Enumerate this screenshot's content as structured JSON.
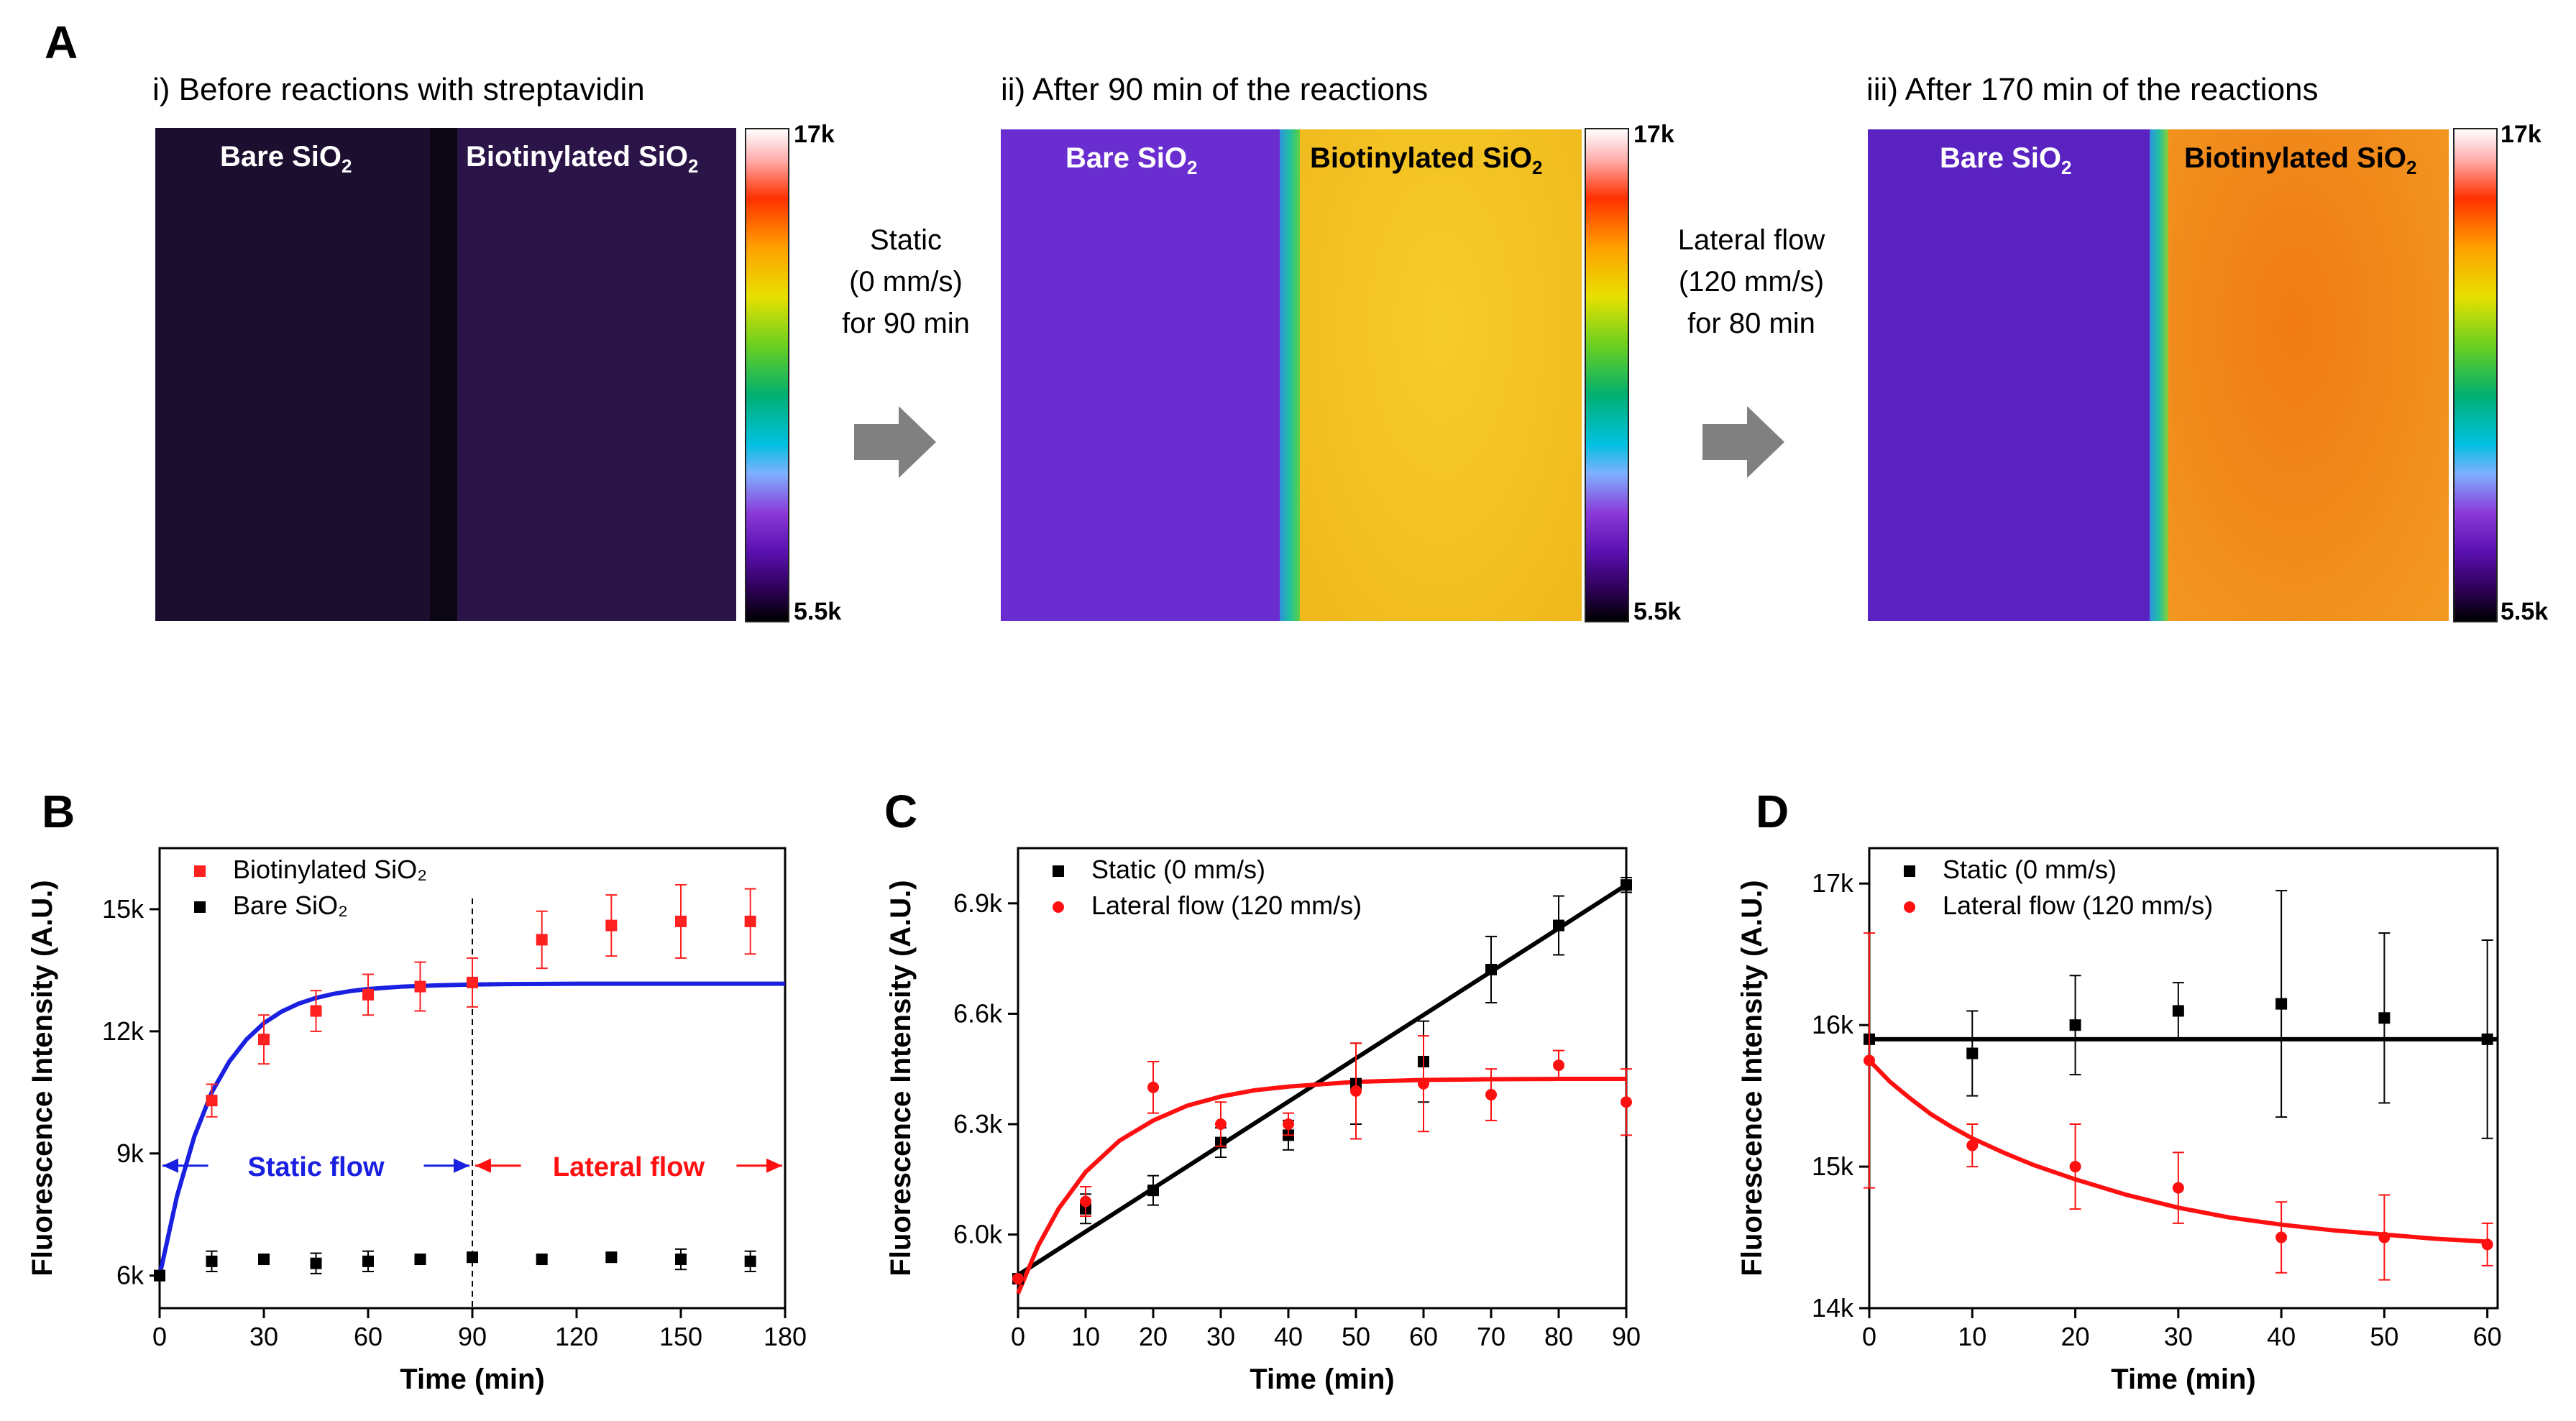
{
  "panel_a": {
    "letter": "A",
    "images": [
      {
        "title": "i) Before reactions with streptavidin",
        "left_label": "Bare SiO",
        "right_label": "Biotinylated SiO",
        "sub": "2",
        "cbar_max": "17k",
        "cbar_min": "5.5k"
      },
      {
        "title": "ii) After 90 min of the reactions",
        "left_label": "Bare SiO",
        "right_label": "Biotinylated SiO",
        "sub": "2",
        "cbar_max": "17k",
        "cbar_min": "5.5k"
      },
      {
        "title": "iii) After 170 min of the reactions",
        "left_label": "Bare SiO",
        "right_label": "Biotinylated SiO",
        "sub": "2",
        "cbar_max": "17k",
        "cbar_min": "5.5k"
      }
    ],
    "transitions": [
      {
        "line1": "Static",
        "line2": "(0 mm/s)",
        "line3": "for 90 min"
      },
      {
        "line1": "Lateral flow",
        "line2": "(120 mm/s)",
        "line3": "for 80 min"
      }
    ],
    "colors": {
      "bare_before": "#1c0e2e",
      "bio_before": "#2a1448",
      "bare_after": "#6a2ed0",
      "bio_ii": "#f2c21c",
      "bio_iii": "#f08a18",
      "edge": "#20c0a0"
    }
  },
  "chart_data": [
    {
      "panel": "B",
      "type": "scatter",
      "xlabel": "Time (min)",
      "ylabel": "Fluorescence Intensity (A.U.)",
      "xlim": [
        0,
        180
      ],
      "ylim": [
        5200,
        16500
      ],
      "xticks": [
        0,
        30,
        60,
        90,
        120,
        150,
        180
      ],
      "xtick_labels": [
        "0",
        "30",
        "60",
        "90",
        "120",
        "150",
        "180"
      ],
      "yticks": [
        6000,
        9000,
        12000,
        15000
      ],
      "ytick_labels": [
        "6k",
        "9k",
        "12k",
        "15k"
      ],
      "series": [
        {
          "name": "Biotinylated SiO₂",
          "color": "#ff2020",
          "marker": "square",
          "x": [
            0,
            15,
            30,
            45,
            60,
            75,
            90,
            110,
            130,
            150,
            170
          ],
          "y": [
            6000,
            10300,
            11800,
            12500,
            12900,
            13100,
            13200,
            14250,
            14600,
            14700,
            14700
          ],
          "err": [
            0,
            400,
            600,
            500,
            500,
            600,
            600,
            700,
            750,
            900,
            800
          ]
        },
        {
          "name": "Bare SiO₂",
          "color": "#000000",
          "marker": "square",
          "x": [
            0,
            15,
            30,
            45,
            60,
            75,
            90,
            110,
            130,
            150,
            170
          ],
          "y": [
            6000,
            6350,
            6400,
            6300,
            6350,
            6400,
            6450,
            6400,
            6450,
            6400,
            6350
          ],
          "err": [
            0,
            250,
            100,
            250,
            250,
            100,
            100,
            100,
            100,
            250,
            250
          ]
        }
      ],
      "fit": {
        "color": "#1a20e0",
        "x": [
          0,
          5,
          10,
          15,
          20,
          25,
          30,
          35,
          40,
          45,
          50,
          55,
          60,
          70,
          80,
          90,
          100,
          120,
          140,
          160,
          180
        ],
        "y": [
          6000,
          7950,
          9420,
          10500,
          11250,
          11800,
          12200,
          12480,
          12680,
          12820,
          12920,
          12990,
          13040,
          13100,
          13130,
          13150,
          13160,
          13170,
          13170,
          13170,
          13170
        ]
      },
      "divider_x": 90,
      "annotations": [
        {
          "text": "Static flow",
          "color": "#1a20e0",
          "from": 0,
          "to": 90,
          "y": 8700
        },
        {
          "text": "Lateral flow",
          "color": "#ff1010",
          "from": 90,
          "to": 180,
          "y": 8700
        }
      ]
    },
    {
      "panel": "C",
      "type": "scatter",
      "xlabel": "Time (min)",
      "ylabel": "Fluorescence Intensity (A.U.)",
      "xlim": [
        0,
        90
      ],
      "ylim": [
        5800,
        7050
      ],
      "xticks": [
        0,
        10,
        20,
        30,
        40,
        50,
        60,
        70,
        80,
        90
      ],
      "xtick_labels": [
        "0",
        "10",
        "20",
        "30",
        "40",
        "50",
        "60",
        "70",
        "80",
        "90"
      ],
      "yticks": [
        6000,
        6300,
        6600,
        6900
      ],
      "ytick_labels": [
        "6.0k",
        "6.3k",
        "6.6k",
        "6.9k"
      ],
      "series": [
        {
          "name": "Static (0 mm/s)",
          "color": "#000000",
          "marker": "square",
          "x": [
            0,
            10,
            20,
            30,
            40,
            50,
            60,
            70,
            80,
            90
          ],
          "y": [
            5880,
            6070,
            6120,
            6250,
            6270,
            6410,
            6470,
            6720,
            6840,
            6950
          ],
          "err": [
            0,
            40,
            40,
            40,
            40,
            110,
            110,
            90,
            80,
            20
          ]
        },
        {
          "name": "Lateral flow (120 mm/s)",
          "color": "#ff1010",
          "marker": "circle",
          "x": [
            0,
            10,
            20,
            30,
            40,
            50,
            60,
            70,
            80,
            90
          ],
          "y": [
            5880,
            6090,
            6400,
            6300,
            6300,
            6390,
            6410,
            6380,
            6460,
            6360
          ],
          "err": [
            0,
            40,
            70,
            60,
            30,
            130,
            130,
            70,
            40,
            90
          ]
        }
      ],
      "fits": [
        {
          "color": "#000000",
          "x": [
            0,
            90
          ],
          "y": [
            5890,
            6950
          ]
        },
        {
          "color": "#ff1010",
          "x": [
            0,
            3,
            6,
            10,
            15,
            20,
            25,
            30,
            35,
            40,
            50,
            60,
            70,
            80,
            90
          ],
          "y": [
            5840,
            5970,
            6070,
            6170,
            6255,
            6310,
            6350,
            6375,
            6392,
            6402,
            6415,
            6420,
            6422,
            6423,
            6423
          ]
        }
      ]
    },
    {
      "panel": "D",
      "type": "scatter",
      "xlabel": "Time (min)",
      "ylabel": "Fluorescence Intensity (A.U.)",
      "xlim": [
        0,
        61
      ],
      "ylim": [
        14000,
        17250
      ],
      "xticks": [
        0,
        10,
        20,
        30,
        40,
        50,
        60
      ],
      "xtick_labels": [
        "0",
        "10",
        "20",
        "30",
        "40",
        "50",
        "60"
      ],
      "yticks": [
        14000,
        15000,
        16000,
        17000
      ],
      "ytick_labels": [
        "14k",
        "15k",
        "16k",
        "17k"
      ],
      "series": [
        {
          "name": "Static (0 mm/s)",
          "color": "#000000",
          "marker": "square",
          "x": [
            0,
            10,
            20,
            30,
            40,
            50,
            60
          ],
          "y": [
            15900,
            15800,
            16000,
            16100,
            16150,
            16050,
            15900
          ],
          "err": [
            0,
            300,
            350,
            200,
            800,
            600,
            700
          ]
        },
        {
          "name": "Lateral flow (120 mm/s)",
          "color": "#ff1010",
          "marker": "circle",
          "x": [
            0,
            10,
            20,
            30,
            40,
            50,
            60
          ],
          "y": [
            15750,
            15150,
            15000,
            14850,
            14500,
            14500,
            14450
          ],
          "err": [
            900,
            150,
            300,
            250,
            250,
            300,
            150
          ]
        }
      ],
      "fits": [
        {
          "color": "#000000",
          "x": [
            0,
            61
          ],
          "y": [
            15900,
            15900
          ]
        },
        {
          "color": "#ff1010",
          "x": [
            0,
            2,
            4,
            6,
            8,
            10,
            13,
            16,
            20,
            25,
            30,
            35,
            40,
            45,
            50,
            55,
            60
          ],
          "y": [
            15750,
            15600,
            15480,
            15370,
            15280,
            15200,
            15100,
            15010,
            14910,
            14800,
            14710,
            14640,
            14590,
            14550,
            14520,
            14490,
            14470
          ]
        }
      ]
    }
  ]
}
